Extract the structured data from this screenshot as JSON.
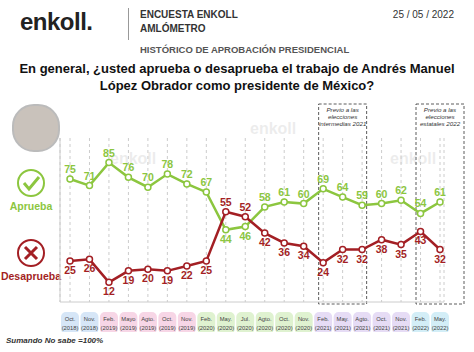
{
  "header": {
    "logo": "enkoll.",
    "survey": "ENCUESTA ENKOLL",
    "name": "AMLÓMETRO",
    "date": "25 / 05 / 2022",
    "watermark": "enkoll"
  },
  "chart_data": {
    "type": "line",
    "subtitle": "HISTÓRICO DE APROBACIÓN PRESIDENCIAL",
    "title": "En general, ¿usted aprueba o desaprueba el trabajo de Andrés Manuel López Obrador como presidente de México?",
    "categories": [
      "Oct. (2018)",
      "Nov. (2018)",
      "Feb. (2019)",
      "Mayo (2019)",
      "Agto. (2019)",
      "Oct. (2019)",
      "Nov. (2019)",
      "Feb. (2020)",
      "May. (2020)",
      "Jul. (2020)",
      "Agto. (2020)",
      "Oct. (2020)",
      "Nov. (2020)",
      "Feb. (2021)",
      "May. (2021)",
      "Agto. (2021)",
      "Oct. (2021)",
      "Nov. (2021)",
      "Feb. (2022)",
      "May. (2022)"
    ],
    "series": [
      {
        "name": "Aprueba",
        "color": "#8cc63f",
        "marker": "circle",
        "values": [
          75,
          71,
          85,
          76,
          70,
          78,
          72,
          67,
          44,
          46,
          58,
          61,
          60,
          69,
          64,
          59,
          60,
          62,
          54,
          61
        ]
      },
      {
        "name": "Desaprueba",
        "color": "#a31f24",
        "marker": "circle",
        "values": [
          25,
          26,
          12,
          19,
          20,
          19,
          22,
          25,
          55,
          52,
          42,
          36,
          34,
          24,
          32,
          32,
          38,
          35,
          43,
          32
        ]
      }
    ],
    "ylim": [
      0,
      100
    ],
    "grid": true,
    "data_labels": true,
    "tick_labels": "x",
    "annotations": [
      {
        "text": "Previo a las elecciones intermedias 2021",
        "x": "May. (2021)"
      },
      {
        "text": "Previo a las elecciones estatales 2022",
        "x": "May. (2022)"
      }
    ],
    "note": "Sumando No sabe =100%"
  }
}
